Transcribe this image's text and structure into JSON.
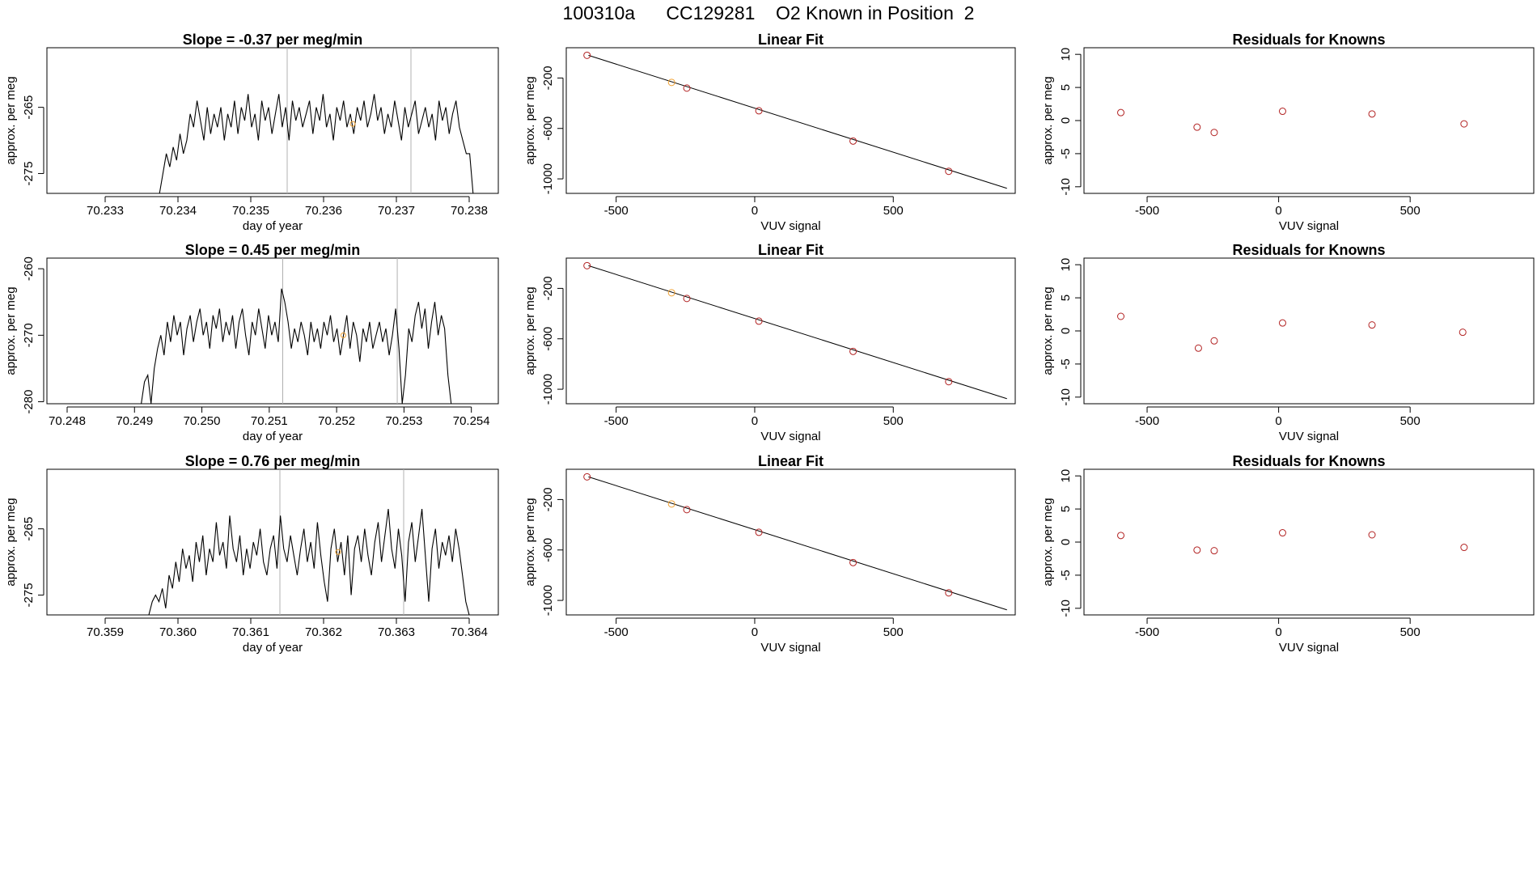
{
  "header": {
    "title": "100310a      CC129281    O2 Known in Position  2"
  },
  "colors": {
    "trace": "#000000",
    "known_point": "#f0a030",
    "fit_point": "#b22222",
    "line": "#000000",
    "vline": "#b0b0b0",
    "frame": "#000000"
  },
  "chart_data": [
    {
      "type": "line",
      "row": 0,
      "col": 0,
      "title": "Slope =  -0.37  per meg/min",
      "xlabel": "day of year",
      "ylabel": "approx. per meg",
      "xlim": [
        70.2322,
        70.2384
      ],
      "ylim": [
        -278,
        -256
      ],
      "xticks": [
        "70.233",
        "70.234",
        "70.235",
        "70.236",
        "70.237",
        "70.238"
      ],
      "yticks": [
        "-265",
        "-275"
      ],
      "vlines": [
        70.2355,
        70.2372
      ],
      "highlight": {
        "x": 70.2364,
        "y": -267.5
      },
      "series": [
        {
          "x_start": 70.2337,
          "x_end": 70.2381,
          "y": [
            -280,
            -278,
            -275,
            -272,
            -274,
            -271,
            -273,
            -269,
            -272,
            -270,
            -266,
            -268,
            -264,
            -267,
            -270,
            -265,
            -269,
            -266,
            -268,
            -265,
            -270,
            -266,
            -268,
            -264,
            -269,
            -265,
            -267,
            -263,
            -268,
            -266,
            -270,
            -264,
            -267,
            -265,
            -269,
            -266,
            -263,
            -268,
            -265,
            -270,
            -264,
            -267,
            -265,
            -268,
            -266,
            -264,
            -269,
            -265,
            -267,
            -263,
            -268,
            -266,
            -270,
            -265,
            -267,
            -264,
            -268,
            -266,
            -269,
            -265,
            -267,
            -264,
            -268,
            -266,
            -263,
            -267,
            -265,
            -269,
            -266,
            -268,
            -264,
            -267,
            -270,
            -265,
            -268,
            -266,
            -264,
            -269,
            -267,
            -265,
            -268,
            -266,
            -270,
            -264,
            -267,
            -265,
            -269,
            -266,
            -264,
            -268,
            -270,
            -272,
            -272,
            -278,
            -283
          ]
        }
      ]
    },
    {
      "type": "scatter",
      "row": 0,
      "col": 1,
      "title": "Linear Fit",
      "xlabel": "VUV signal",
      "ylabel": "approx. per meg",
      "xlim": [
        -680,
        940
      ],
      "ylim": [
        -1115,
        40
      ],
      "xticks": [
        "-500",
        "0",
        "500"
      ],
      "yticks": [
        "-200",
        "-600",
        "-1000"
      ],
      "fit_line": {
        "x": [
          -600,
          910
        ],
        "y": [
          -20,
          -1075
        ]
      },
      "points": {
        "x": [
          -605,
          -300,
          -245,
          15,
          355,
          700
        ],
        "y": [
          -20,
          -235,
          -280,
          -460,
          -700,
          -940
        ],
        "known_index": 1
      }
    },
    {
      "type": "scatter",
      "row": 0,
      "col": 2,
      "title": "Residuals for Knowns",
      "xlabel": "VUV signal",
      "ylabel": "approx. per meg",
      "xlim": [
        -740,
        970
      ],
      "ylim": [
        -11,
        11
      ],
      "xticks": [
        "-500",
        "0",
        "500"
      ],
      "yticks": [
        "10",
        "5",
        "0",
        "-5",
        "-10"
      ],
      "points": {
        "x": [
          -600,
          -310,
          -245,
          15,
          355,
          705
        ],
        "y": [
          1.2,
          -1.0,
          -1.8,
          1.4,
          1.0,
          -0.5
        ]
      }
    },
    {
      "type": "line",
      "row": 1,
      "col": 0,
      "title": "Slope =  0.45  per meg/min",
      "xlabel": "day of year",
      "ylabel": "approx. per meg",
      "xlim": [
        70.2477,
        70.2544
      ],
      "ylim": [
        -280.3,
        -258.4
      ],
      "xticks": [
        "70.248",
        "70.249",
        "70.250",
        "70.251",
        "70.252",
        "70.253",
        "70.254"
      ],
      "yticks": [
        "-260",
        "-270",
        "-280"
      ],
      "vlines": [
        70.2512,
        70.2529
      ],
      "highlight": {
        "x": 70.2521,
        "y": -270
      },
      "series": [
        {
          "x_start": 70.2491,
          "x_end": 70.2537,
          "y": [
            -282,
            -277,
            -276,
            -283,
            -275,
            -272,
            -270,
            -273,
            -268,
            -271,
            -267,
            -270,
            -268,
            -273,
            -269,
            -267,
            -271,
            -268,
            -266,
            -270,
            -268,
            -272,
            -267,
            -269,
            -266,
            -271,
            -268,
            -270,
            -267,
            -272,
            -268,
            -266,
            -270,
            -273,
            -268,
            -270,
            -266,
            -269,
            -272,
            -267,
            -270,
            -268,
            -271,
            -263,
            -265,
            -268,
            -272,
            -269,
            -271,
            -268,
            -270,
            -273,
            -268,
            -271,
            -269,
            -272,
            -268,
            -270,
            -267,
            -271,
            -269,
            -273,
            -270,
            -267,
            -272,
            -268,
            -270,
            -274,
            -269,
            -271,
            -268,
            -272,
            -270,
            -268,
            -271,
            -269,
            -273,
            -270,
            -266,
            -272,
            -282,
            -276,
            -269,
            -271,
            -267,
            -265,
            -269,
            -266,
            -272,
            -268,
            -265,
            -270,
            -267,
            -269,
            -276,
            -282
          ]
        }
      ]
    },
    {
      "type": "scatter",
      "row": 1,
      "col": 1,
      "title": "Linear Fit",
      "xlabel": "VUV signal",
      "ylabel": "approx. per meg",
      "xlim": [
        -680,
        940
      ],
      "ylim": [
        -1115,
        40
      ],
      "xticks": [
        "-500",
        "0",
        "500"
      ],
      "yticks": [
        "-200",
        "-600",
        "-1000"
      ],
      "fit_line": {
        "x": [
          -600,
          910
        ],
        "y": [
          -20,
          -1075
        ]
      },
      "points": {
        "x": [
          -605,
          -300,
          -245,
          15,
          355,
          700
        ],
        "y": [
          -20,
          -235,
          -280,
          -460,
          -700,
          -940
        ],
        "known_index": 1
      }
    },
    {
      "type": "scatter",
      "row": 1,
      "col": 2,
      "title": "Residuals for Knowns",
      "xlabel": "VUV signal",
      "ylabel": "approx. per meg",
      "xlim": [
        -740,
        970
      ],
      "ylim": [
        -11,
        11
      ],
      "xticks": [
        "-500",
        "0",
        "500"
      ],
      "yticks": [
        "10",
        "5",
        "0",
        "-5",
        "-10"
      ],
      "points": {
        "x": [
          -600,
          -305,
          -245,
          15,
          355,
          700
        ],
        "y": [
          2.2,
          -2.6,
          -1.5,
          1.2,
          0.9,
          -0.2
        ]
      }
    },
    {
      "type": "line",
      "row": 2,
      "col": 0,
      "title": "Slope =  0.76  per meg/min",
      "xlabel": "day of year",
      "ylabel": "approx. per meg",
      "xlim": [
        70.3582,
        70.3644
      ],
      "ylim": [
        -278,
        -256
      ],
      "xticks": [
        "70.359",
        "70.360",
        "70.361",
        "70.362",
        "70.363",
        "70.364"
      ],
      "yticks": [
        "-265",
        "-275"
      ],
      "vlines": [
        70.3614,
        70.3631
      ],
      "highlight": {
        "x": 70.3622,
        "y": -268.5
      },
      "series": [
        {
          "x_start": 70.3596,
          "x_end": 70.364,
          "y": [
            -278,
            -276,
            -275,
            -276,
            -274,
            -277,
            -272,
            -274,
            -270,
            -273,
            -268,
            -271,
            -269,
            -273,
            -267,
            -270,
            -266,
            -272,
            -268,
            -270,
            -264,
            -269,
            -267,
            -271,
            -263,
            -268,
            -270,
            -266,
            -272,
            -268,
            -271,
            -267,
            -269,
            -265,
            -270,
            -272,
            -268,
            -266,
            -271,
            -263,
            -268,
            -270,
            -266,
            -269,
            -272,
            -268,
            -265,
            -270,
            -267,
            -271,
            -264,
            -269,
            -273,
            -276,
            -268,
            -265,
            -270,
            -267,
            -272,
            -266,
            -275,
            -268,
            -266,
            -270,
            -265,
            -269,
            -272,
            -267,
            -264,
            -270,
            -266,
            -262,
            -268,
            -271,
            -265,
            -269,
            -276,
            -267,
            -264,
            -270,
            -266,
            -262,
            -269,
            -276,
            -268,
            -265,
            -271,
            -267,
            -269,
            -266,
            -270,
            -265,
            -268,
            -272,
            -276,
            -281
          ]
        }
      ]
    },
    {
      "type": "scatter",
      "row": 2,
      "col": 1,
      "title": "Linear Fit",
      "xlabel": "VUV signal",
      "ylabel": "approx. per meg",
      "xlim": [
        -680,
        940
      ],
      "ylim": [
        -1115,
        40
      ],
      "xticks": [
        "-500",
        "0",
        "500"
      ],
      "yticks": [
        "-200",
        "-600",
        "-1000"
      ],
      "fit_line": {
        "x": [
          -600,
          910
        ],
        "y": [
          -20,
          -1075
        ]
      },
      "points": {
        "x": [
          -605,
          -300,
          -245,
          15,
          355,
          700
        ],
        "y": [
          -20,
          -235,
          -280,
          -460,
          -700,
          -940
        ],
        "known_index": 1
      }
    },
    {
      "type": "scatter",
      "row": 2,
      "col": 2,
      "title": "Residuals for Knowns",
      "xlabel": "VUV signal",
      "ylabel": "approx. per meg",
      "xlim": [
        -740,
        970
      ],
      "ylim": [
        -11,
        11
      ],
      "xticks": [
        "-500",
        "0",
        "500"
      ],
      "yticks": [
        "10",
        "5",
        "0",
        "-5",
        "-10"
      ],
      "points": {
        "x": [
          -600,
          -310,
          -245,
          15,
          355,
          705
        ],
        "y": [
          1.0,
          -1.2,
          -1.3,
          1.4,
          1.1,
          -0.8
        ]
      }
    }
  ]
}
